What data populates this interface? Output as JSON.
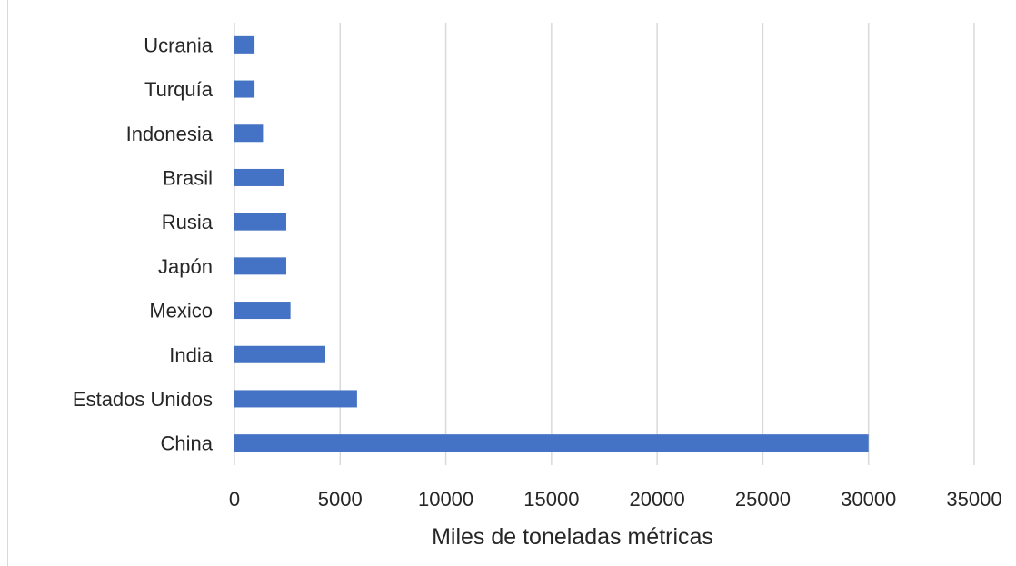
{
  "chart_data": {
    "type": "bar",
    "orientation": "horizontal",
    "categories": [
      "China",
      "Estados Unidos",
      "India",
      "Mexico",
      "Japón",
      "Rusia",
      "Brasil",
      "Indonesia",
      "Turquía",
      "Ucrania"
    ],
    "values": [
      30000,
      5800,
      4300,
      2650,
      2450,
      2450,
      2350,
      1350,
      950,
      950
    ],
    "xlabel": "Miles de toneladas  métricas",
    "xlim": [
      0,
      35000
    ],
    "xticks": [
      0,
      5000,
      10000,
      15000,
      20000,
      25000,
      30000,
      35000
    ],
    "grid": "vertical",
    "bar_color": "#4472c4",
    "grid_color": "#d9d9d9",
    "legend": "none"
  }
}
